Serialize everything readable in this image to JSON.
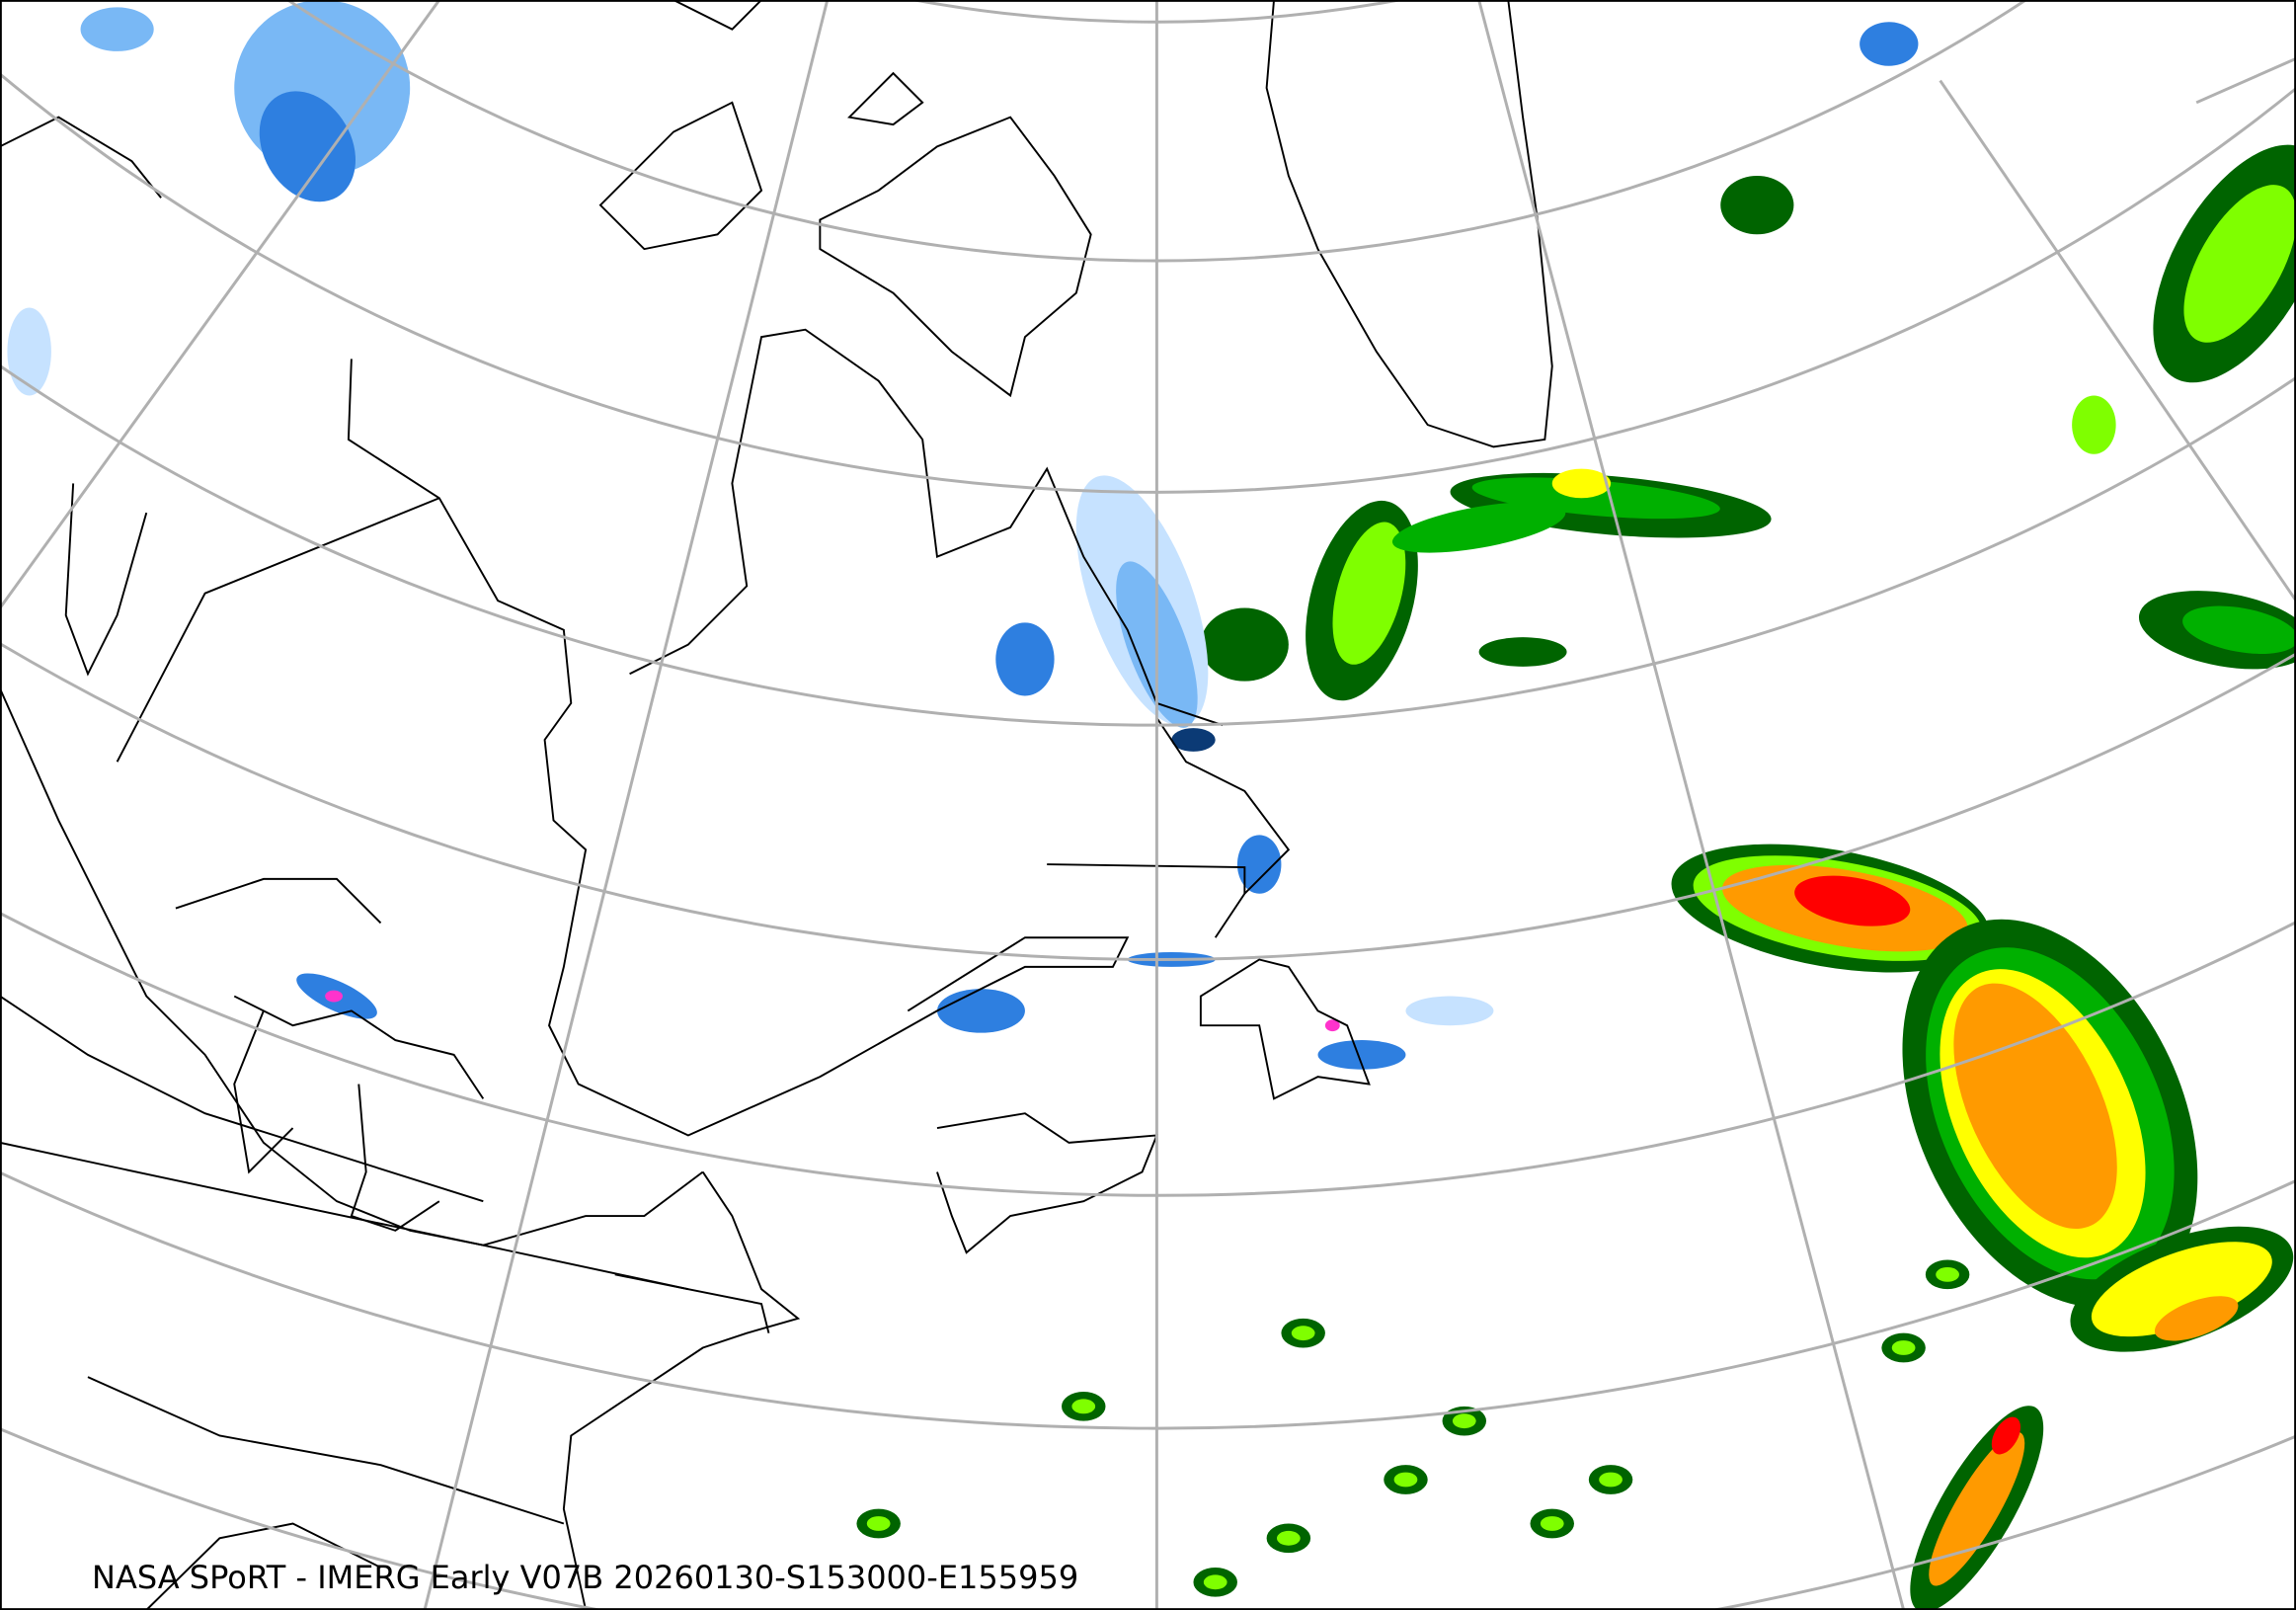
{
  "caption": "NASA SPoRT - IMERG Early V07B 20260130-S153000-E155959",
  "map": {
    "projection": "polar stereographic",
    "region": "Northeastern North America and North Atlantic",
    "graticule_color": "#b0b0b0",
    "coastline_color": "#000000",
    "precip_colors": {
      "light_blue": "#c6e2ff",
      "sky_blue": "#79b8f5",
      "blue": "#2e7fe0",
      "navy": "#0b3a75",
      "magenta": "#ff33cc",
      "dark_green": "#006400",
      "green": "#00b000",
      "lime": "#7fff00",
      "yellow": "#ffff00",
      "orange": "#ff9a00",
      "red": "#ff0000"
    }
  }
}
